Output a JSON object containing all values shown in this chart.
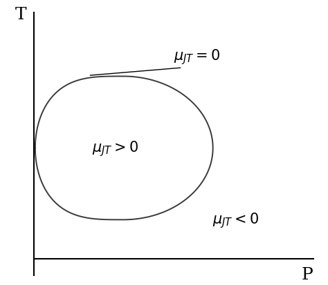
{
  "title": "",
  "xlabel": "P",
  "ylabel": "T",
  "background_color": "#ffffff",
  "curve_color": "#3a3a3a",
  "axis_color": "#000000",
  "label_gt0": "$\\mu_{JT} > 0$",
  "label_lt0": "$\\mu_{JT} < 0$",
  "label_eq0": "$\\mu_{JT} = 0$",
  "fontsize_labels": 15,
  "fontsize_axis": 18,
  "line_width": 1.4
}
